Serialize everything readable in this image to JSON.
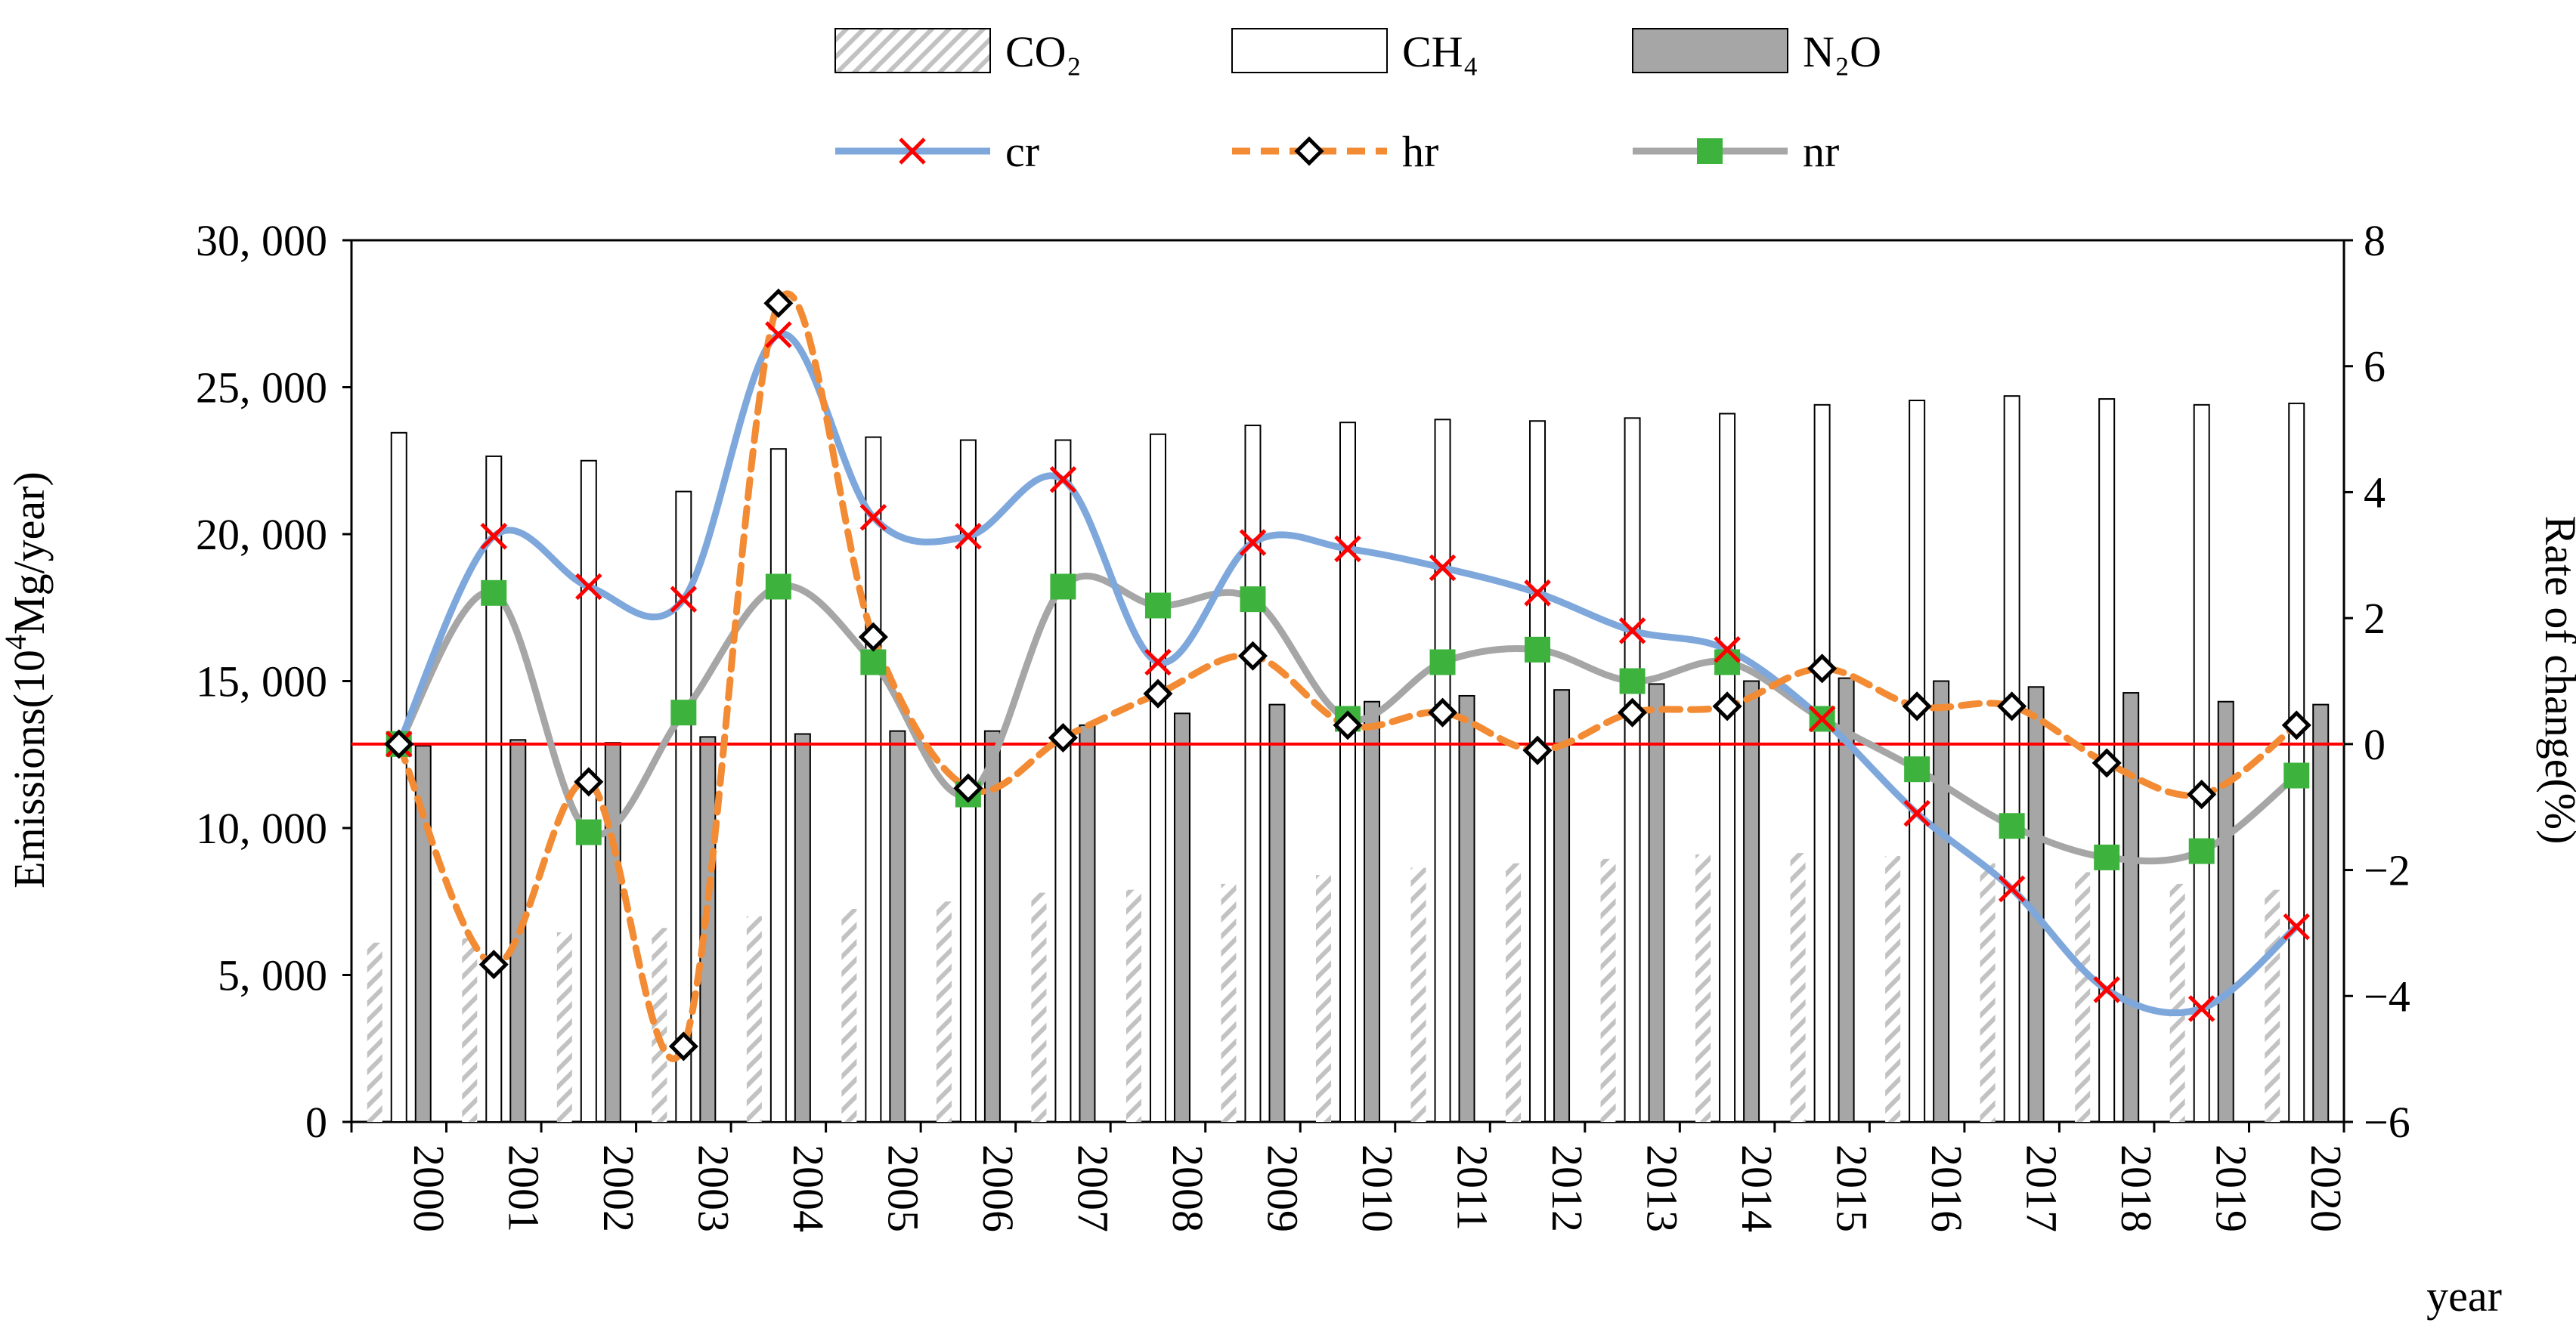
{
  "chart_data": {
    "type": "bar+line",
    "categories": [
      "2000",
      "2001",
      "2002",
      "2003",
      "2004",
      "2005",
      "2006",
      "2007",
      "2008",
      "2009",
      "2010",
      "2011",
      "2012",
      "2013",
      "2014",
      "2015",
      "2016",
      "2017",
      "2018",
      "2019",
      "2020"
    ],
    "bar_series": [
      {
        "name": "CO₂",
        "values": [
          6100,
          6250,
          6450,
          6600,
          7000,
          7250,
          7500,
          7800,
          7900,
          8100,
          8400,
          8650,
          8800,
          8950,
          9100,
          9150,
          9050,
          8800,
          8500,
          8100,
          7900
        ]
      },
      {
        "name": "CH₄",
        "values": [
          23450,
          22650,
          22500,
          21450,
          22900,
          23300,
          23200,
          23200,
          23400,
          23700,
          23800,
          23900,
          23850,
          23950,
          24100,
          24400,
          24550,
          24700,
          24600,
          24400,
          24450
        ]
      },
      {
        "name": "N₂O",
        "values": [
          12800,
          13000,
          12900,
          13100,
          13200,
          13300,
          13300,
          13500,
          13900,
          14200,
          14300,
          14500,
          14700,
          14900,
          15000,
          15100,
          15000,
          14800,
          14600,
          14300,
          14200
        ]
      }
    ],
    "line_series": [
      {
        "name": "cr",
        "values": [
          0.0,
          3.3,
          2.5,
          2.3,
          6.5,
          3.6,
          3.3,
          4.2,
          1.3,
          3.2,
          3.1,
          2.8,
          2.4,
          1.8,
          1.5,
          0.4,
          -1.1,
          -2.3,
          -3.9,
          -4.2,
          -2.9
        ]
      },
      {
        "name": "hr",
        "values": [
          0.0,
          -3.5,
          -0.6,
          -4.8,
          7.0,
          1.7,
          -0.7,
          0.1,
          0.8,
          1.4,
          0.3,
          0.5,
          -0.1,
          0.5,
          0.6,
          1.2,
          0.6,
          0.6,
          -0.3,
          -0.8,
          0.3
        ]
      },
      {
        "name": "nr",
        "values": [
          0.0,
          2.4,
          -1.4,
          0.5,
          2.5,
          1.3,
          -0.8,
          2.5,
          2.2,
          2.3,
          0.4,
          1.3,
          1.5,
          1.0,
          1.3,
          0.4,
          -0.4,
          -1.3,
          -1.8,
          -1.7,
          -0.5
        ]
      }
    ],
    "ylabel": "Emissions(10⁴Mg/year)",
    "ylabel_parts": [
      "Emissions(10",
      "4",
      "Mg/year)"
    ],
    "y2label": "Rate of change(%)",
    "xlabel": "year",
    "ylim": [
      0,
      30000
    ],
    "y2lim": [
      -6,
      8
    ],
    "y_ticks": [
      "0",
      "5, 000",
      "10, 000",
      "15, 000",
      "20, 000",
      "25, 000",
      "30, 000"
    ],
    "y_tick_values": [
      0,
      5000,
      10000,
      15000,
      20000,
      25000,
      30000
    ],
    "y2_ticks": [
      "−6",
      "−4",
      "−2",
      "0",
      "2",
      "4",
      "6",
      "8"
    ],
    "y2_tick_values": [
      -6,
      -4,
      -2,
      0,
      2,
      4,
      6,
      8
    ],
    "reference_line_y2": 0,
    "legend_position": "top",
    "grid": false
  },
  "colors": {
    "cr": "#7ea7dc",
    "hr": "#f28b33",
    "nr": "#a6a6a6",
    "cr_marker": "#ff0000",
    "nr_marker": "#3db33d",
    "n2o_bar": "#a6a6a6",
    "co2_hatch": "#bfbfbf",
    "zero_line": "#ff0000"
  }
}
